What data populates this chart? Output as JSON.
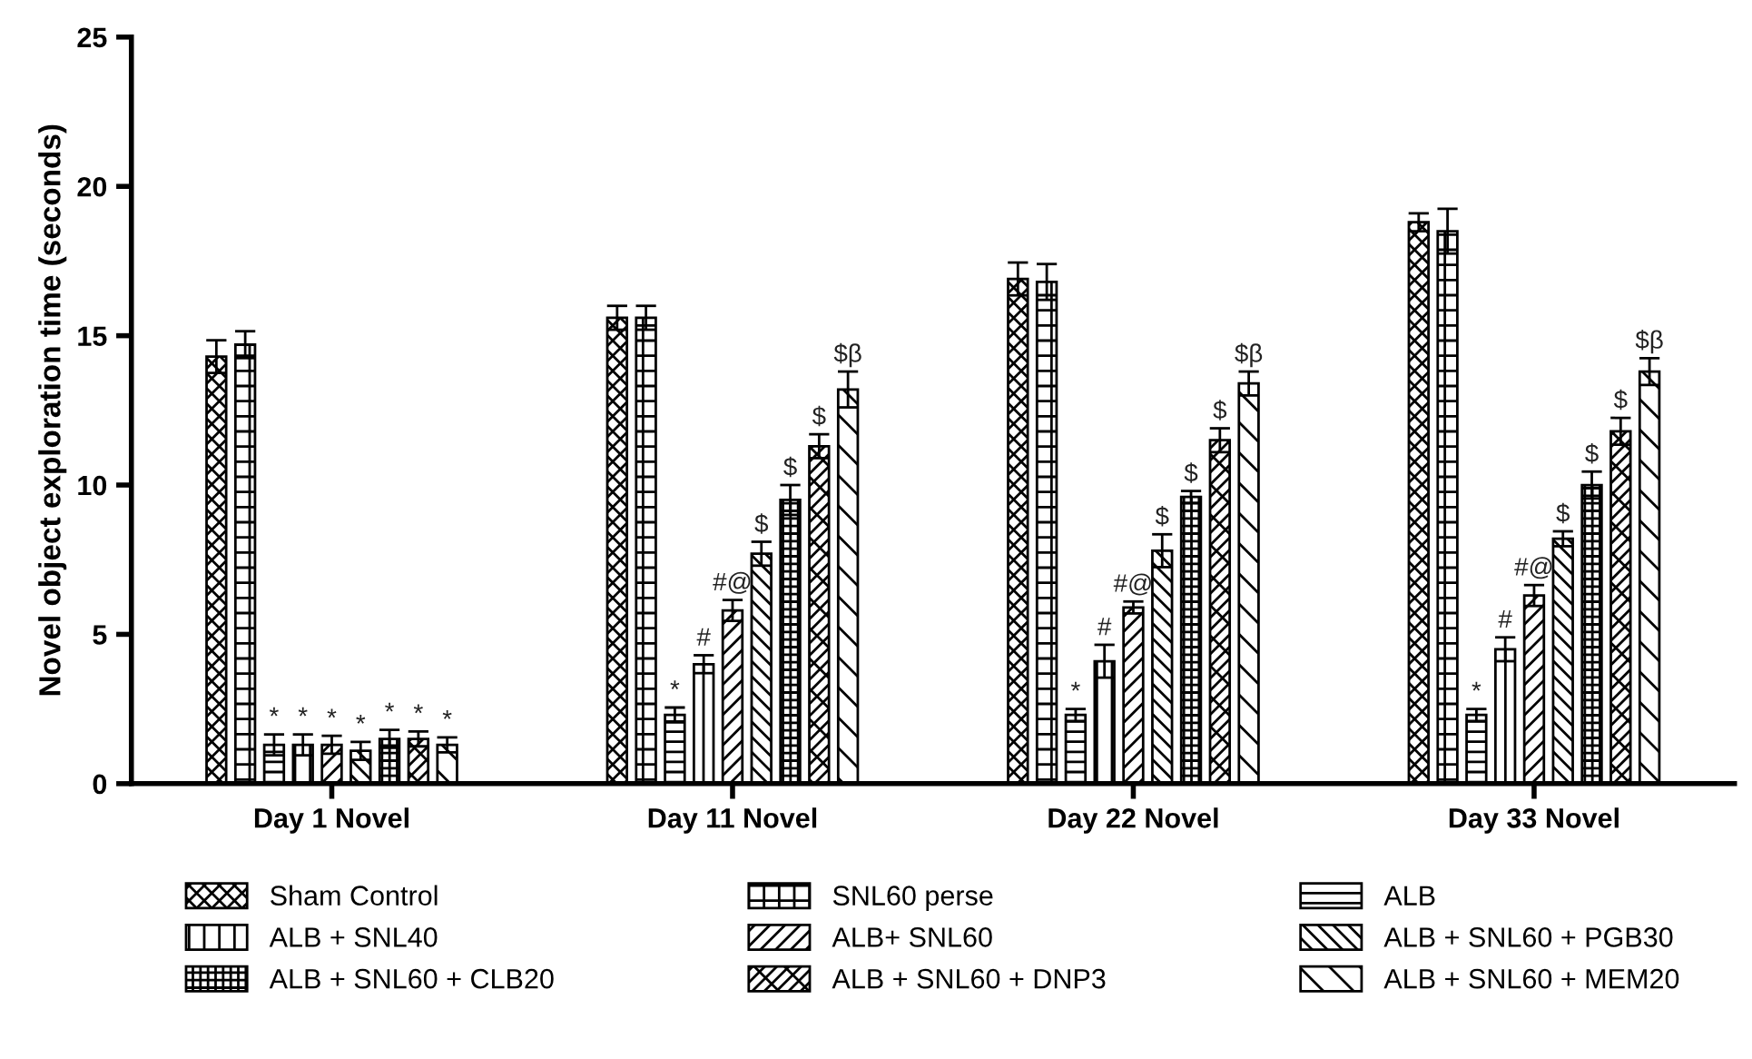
{
  "chart_data": {
    "type": "bar",
    "ylabel": "Novel object exploration time (seconds)",
    "categories": [
      "Day 1 Novel",
      "Day 11 Novel",
      "Day 22 Novel",
      "Day 33 Novel"
    ],
    "ylim": [
      0,
      25
    ],
    "yticks": [
      0,
      5,
      10,
      15,
      20,
      25
    ],
    "grid": false,
    "legend": "bottom",
    "series": [
      {
        "name": "Sham Control",
        "color": "#000000",
        "values": [
          14.3,
          15.6,
          16.9,
          18.8
        ],
        "errors": [
          0.55,
          0.4,
          0.55,
          0.3
        ],
        "value_labels": [
          null,
          null,
          null,
          null
        ]
      },
      {
        "name": "SNL60 perse",
        "color": "#000000",
        "values": [
          14.7,
          15.6,
          16.8,
          18.5
        ],
        "errors": [
          0.45,
          0.4,
          0.6,
          0.75
        ],
        "value_labels": [
          null,
          null,
          null,
          null
        ]
      },
      {
        "name": "ALB",
        "color": "#000000",
        "values": [
          1.3,
          2.3,
          2.3,
          2.3
        ],
        "errors": [
          0.35,
          0.25,
          0.2,
          0.2
        ],
        "value_labels": [
          "*",
          "*",
          "*",
          "*"
        ]
      },
      {
        "name": "ALB + SNL40",
        "color": "#000000",
        "values": [
          1.3,
          4.0,
          4.1,
          4.5
        ],
        "errors": [
          0.35,
          0.3,
          0.55,
          0.4
        ],
        "value_labels": [
          "*",
          "#",
          "#",
          "#"
        ]
      },
      {
        "name": "ALB+ SNL60",
        "color": "#000000",
        "values": [
          1.3,
          5.8,
          5.9,
          6.3
        ],
        "errors": [
          0.3,
          0.35,
          0.2,
          0.35
        ],
        "value_labels": [
          "*",
          "#@",
          "#@",
          "#@"
        ]
      },
      {
        "name": "ALB + SNL60 + PGB30",
        "color": "#000000",
        "values": [
          1.1,
          7.7,
          7.8,
          8.2
        ],
        "errors": [
          0.3,
          0.4,
          0.55,
          0.25
        ],
        "value_labels": [
          "*",
          "$",
          "$",
          "$"
        ]
      },
      {
        "name": "ALB + SNL60 + CLB20",
        "color": "#000000",
        "values": [
          1.5,
          9.5,
          9.6,
          10.0
        ],
        "errors": [
          0.3,
          0.5,
          0.2,
          0.45
        ],
        "value_labels": [
          "*",
          "$",
          "$",
          "$"
        ]
      },
      {
        "name": "ALB + SNL60 + DNP3",
        "color": "#000000",
        "values": [
          1.5,
          11.3,
          11.5,
          11.8
        ],
        "errors": [
          0.25,
          0.4,
          0.4,
          0.45
        ],
        "value_labels": [
          "*",
          "$",
          "$",
          "$"
        ]
      },
      {
        "name": "ALB + SNL60 + MEM20",
        "color": "#000000",
        "values": [
          1.3,
          13.2,
          13.4,
          13.8
        ],
        "errors": [
          0.25,
          0.6,
          0.4,
          0.45
        ],
        "value_labels": [
          "*",
          "$β",
          "$β",
          "$β"
        ]
      }
    ]
  }
}
